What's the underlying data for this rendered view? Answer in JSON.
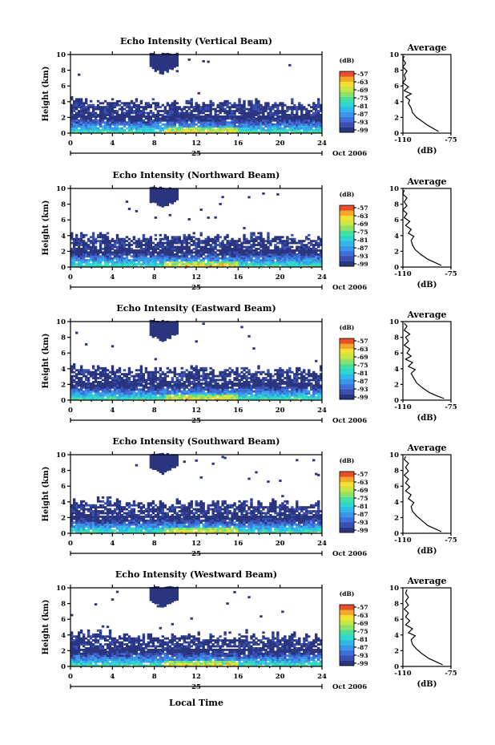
{
  "figure": {
    "xlabel_bottom": "Local Time",
    "date_label": "Oct 2006",
    "day_label": "25"
  },
  "colors": {
    "scale": [
      "#2a3580",
      "#3b4fb0",
      "#3f6fd8",
      "#3b95e8",
      "#31b7ea",
      "#2ed6d0",
      "#45e0a0",
      "#8de06a",
      "#c8e645",
      "#f3e030",
      "#f6a72a",
      "#e6502a"
    ]
  },
  "chart_data": [
    {
      "type": "heatmap",
      "title": "Echo Intensity (Vertical Beam)",
      "ylabel": "Height (km)",
      "xlim": [
        0,
        24
      ],
      "ylim": [
        0,
        10
      ],
      "xticks": [
        0,
        4,
        8,
        12,
        16,
        20,
        24
      ],
      "yticks": [
        0,
        2,
        4,
        6,
        8,
        10
      ],
      "colorbar": {
        "unit": "(dB)",
        "ticks": [
          -57,
          -63,
          -69,
          -75,
          -81,
          -87,
          -93,
          -99
        ]
      },
      "average": {
        "title": "Average",
        "xlabel": "(dB)",
        "xlim": [
          -110,
          -75
        ],
        "xticks": [
          -110,
          -75
        ],
        "ylim": [
          0,
          10
        ],
        "yticks": [
          0,
          2,
          4,
          6,
          8,
          10
        ],
        "profile": [
          [
            -84,
            0.2
          ],
          [
            -88,
            0.6
          ],
          [
            -92,
            1
          ],
          [
            -96,
            1.5
          ],
          [
            -100,
            2
          ],
          [
            -103,
            2.6
          ],
          [
            -104,
            3.2
          ],
          [
            -106,
            3.8
          ],
          [
            -105,
            4.2
          ],
          [
            -108,
            4.6
          ],
          [
            -104,
            5.0
          ],
          [
            -109,
            5.4
          ],
          [
            -106,
            5.9
          ],
          [
            -110,
            6.4
          ],
          [
            -108,
            6.9
          ],
          [
            -109,
            7.4
          ],
          [
            -107,
            7.9
          ],
          [
            -110,
            8.4
          ],
          [
            -108,
            8.9
          ],
          [
            -110,
            9.4
          ],
          [
            -109,
            9.8
          ]
        ]
      }
    },
    {
      "type": "heatmap",
      "title": "Echo Intensity (Northward Beam)",
      "ylabel": "Height (km)",
      "xlim": [
        0,
        24
      ],
      "ylim": [
        0,
        10
      ],
      "xticks": [
        0,
        4,
        8,
        12,
        16,
        20,
        24
      ],
      "yticks": [
        0,
        2,
        4,
        6,
        8,
        10
      ],
      "colorbar": {
        "unit": "(dB)",
        "ticks": [
          -57,
          -63,
          -69,
          -75,
          -81,
          -87,
          -93,
          -99
        ]
      },
      "average": {
        "title": "Average",
        "xlabel": "(dB)",
        "xlim": [
          -110,
          -75
        ],
        "xticks": [
          -110,
          -75
        ],
        "ylim": [
          0,
          10
        ],
        "yticks": [
          0,
          2,
          4,
          6,
          8,
          10
        ],
        "profile": [
          [
            -82,
            0.2
          ],
          [
            -87,
            0.6
          ],
          [
            -92,
            1
          ],
          [
            -97,
            1.6
          ],
          [
            -101,
            2.2
          ],
          [
            -103,
            2.8
          ],
          [
            -104,
            3.4
          ],
          [
            -102,
            3.9
          ],
          [
            -106,
            4.3
          ],
          [
            -104,
            4.8
          ],
          [
            -108,
            5.3
          ],
          [
            -105,
            5.8
          ],
          [
            -109,
            6.3
          ],
          [
            -107,
            6.8
          ],
          [
            -110,
            7.3
          ],
          [
            -107,
            7.8
          ],
          [
            -109,
            8.3
          ],
          [
            -107,
            8.8
          ],
          [
            -110,
            9.3
          ],
          [
            -109,
            9.8
          ]
        ]
      }
    },
    {
      "type": "heatmap",
      "title": "Echo Intensity (Eastward Beam)",
      "ylabel": "Height (km)",
      "xlim": [
        0,
        24
      ],
      "ylim": [
        0,
        10
      ],
      "xticks": [
        0,
        4,
        8,
        12,
        16,
        20,
        24
      ],
      "yticks": [
        0,
        2,
        4,
        6,
        8,
        10
      ],
      "colorbar": {
        "unit": "(dB)",
        "ticks": [
          -57,
          -63,
          -69,
          -75,
          -81,
          -87,
          -93,
          -99
        ]
      },
      "average": {
        "title": "Average",
        "xlabel": "(dB)",
        "xlim": [
          -110,
          -75
        ],
        "xticks": [
          -110,
          -75
        ],
        "ylim": [
          0,
          10
        ],
        "yticks": [
          0,
          2,
          4,
          6,
          8,
          10
        ],
        "profile": [
          [
            -80,
            0.2
          ],
          [
            -86,
            0.6
          ],
          [
            -91,
            1
          ],
          [
            -96,
            1.6
          ],
          [
            -100,
            2.2
          ],
          [
            -102,
            2.8
          ],
          [
            -104,
            3.4
          ],
          [
            -101,
            3.9
          ],
          [
            -106,
            4.3
          ],
          [
            -103,
            4.8
          ],
          [
            -108,
            5.2
          ],
          [
            -104,
            5.6
          ],
          [
            -107,
            6.0
          ],
          [
            -105,
            6.5
          ],
          [
            -109,
            7.0
          ],
          [
            -106,
            7.5
          ],
          [
            -108,
            8.0
          ],
          [
            -105,
            8.4
          ],
          [
            -109,
            8.9
          ],
          [
            -107,
            9.4
          ],
          [
            -109,
            9.8
          ]
        ]
      }
    },
    {
      "type": "heatmap",
      "title": "Echo Intensity (Southward Beam)",
      "ylabel": "Height (km)",
      "xlim": [
        0,
        24
      ],
      "ylim": [
        0,
        10
      ],
      "xticks": [
        0,
        4,
        8,
        12,
        16,
        20,
        24
      ],
      "yticks": [
        0,
        2,
        4,
        6,
        8,
        10
      ],
      "colorbar": {
        "unit": "(dB)",
        "ticks": [
          -57,
          -63,
          -69,
          -75,
          -81,
          -87,
          -93,
          -99
        ]
      },
      "average": {
        "title": "Average",
        "xlabel": "(dB)",
        "xlim": [
          -110,
          -75
        ],
        "xticks": [
          -110,
          -75
        ],
        "ylim": [
          0,
          10
        ],
        "yticks": [
          0,
          2,
          4,
          6,
          8,
          10
        ],
        "profile": [
          [
            -82,
            0.2
          ],
          [
            -87,
            0.6
          ],
          [
            -92,
            1
          ],
          [
            -96,
            1.6
          ],
          [
            -100,
            2.2
          ],
          [
            -103,
            2.8
          ],
          [
            -104,
            3.4
          ],
          [
            -102,
            3.9
          ],
          [
            -106,
            4.4
          ],
          [
            -104,
            4.9
          ],
          [
            -108,
            5.4
          ],
          [
            -105,
            5.9
          ],
          [
            -108,
            6.4
          ],
          [
            -106,
            6.9
          ],
          [
            -109,
            7.4
          ],
          [
            -106,
            7.9
          ],
          [
            -108,
            8.4
          ],
          [
            -106,
            8.9
          ],
          [
            -109,
            9.4
          ],
          [
            -108,
            9.8
          ]
        ]
      }
    },
    {
      "type": "heatmap",
      "title": "Echo Intensity (Westward Beam)",
      "ylabel": "Height (km)",
      "xlim": [
        0,
        24
      ],
      "ylim": [
        0,
        10
      ],
      "xticks": [
        0,
        4,
        8,
        12,
        16,
        20,
        24
      ],
      "yticks": [
        0,
        2,
        4,
        6,
        8,
        10
      ],
      "colorbar": {
        "unit": "(dB)",
        "ticks": [
          -57,
          -63,
          -69,
          -75,
          -81,
          -87,
          -93,
          -99
        ]
      },
      "average": {
        "title": "Average",
        "xlabel": "(dB)",
        "xlim": [
          -110,
          -75
        ],
        "xticks": [
          -110,
          -75
        ],
        "ylim": [
          0,
          10
        ],
        "yticks": [
          0,
          2,
          4,
          6,
          8,
          10
        ],
        "profile": [
          [
            -81,
            0.2
          ],
          [
            -86,
            0.6
          ],
          [
            -91,
            1
          ],
          [
            -96,
            1.6
          ],
          [
            -100,
            2.2
          ],
          [
            -103,
            2.8
          ],
          [
            -104,
            3.4
          ],
          [
            -101,
            3.9
          ],
          [
            -106,
            4.3
          ],
          [
            -103,
            4.8
          ],
          [
            -108,
            5.3
          ],
          [
            -105,
            5.8
          ],
          [
            -108,
            6.3
          ],
          [
            -106,
            6.8
          ],
          [
            -109,
            7.3
          ],
          [
            -106,
            7.8
          ],
          [
            -108,
            8.3
          ],
          [
            -106,
            8.8
          ],
          [
            -108,
            9.3
          ],
          [
            -107,
            9.8
          ]
        ]
      }
    }
  ]
}
